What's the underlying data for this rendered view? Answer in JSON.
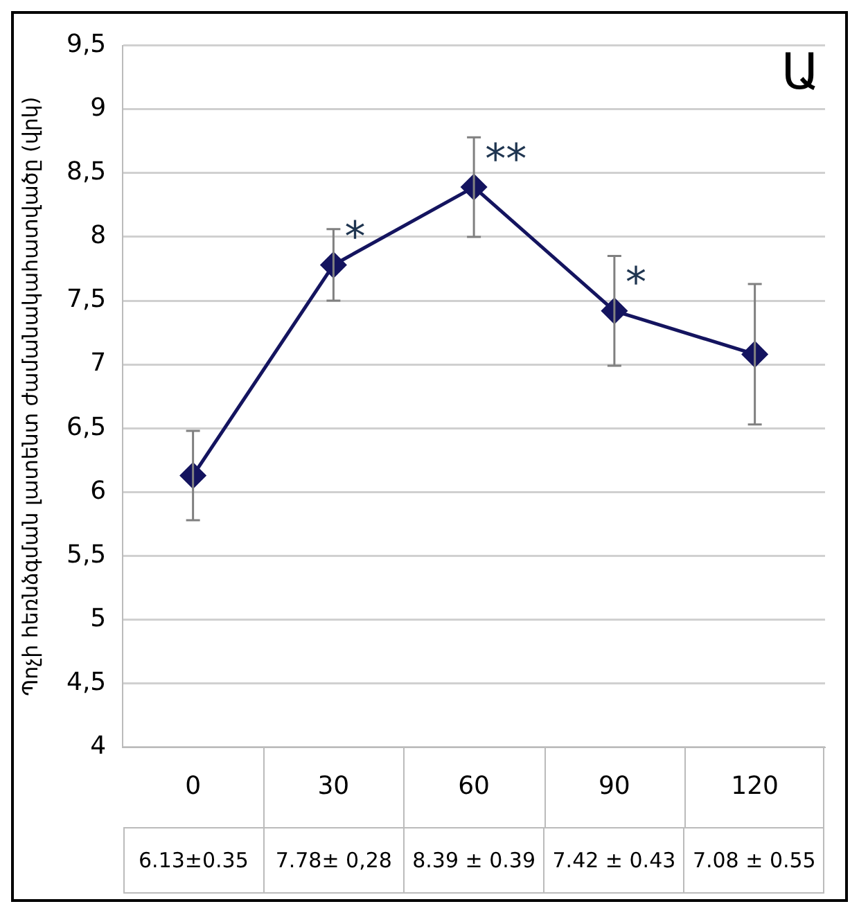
{
  "chart_data": {
    "type": "line",
    "ylabel": "Պոչի հեռնձգման լատենտ ժամանակահատվածը (վրկ)",
    "categories": [
      "0",
      "30",
      "60",
      "90",
      "120"
    ],
    "series": [
      {
        "color": "#14145f",
        "values": [
          6.13,
          7.78,
          8.39,
          7.42,
          7.08
        ],
        "errors": [
          0.35,
          0.28,
          0.39,
          0.43,
          0.55
        ],
        "value_labels": [
          "6.13±0.35",
          "7.78± 0,28",
          "8.39 ± 0.39",
          "7.42 ± 0.43",
          "7.08 ± 0.55"
        ]
      }
    ],
    "ylim": [
      4,
      9.5
    ],
    "yticks": [
      4,
      {
        "value": 4.5,
        "label": "4,5"
      },
      5,
      {
        "value": 5.5,
        "label": "5,5"
      },
      6,
      {
        "value": 6.5,
        "label": "6,5"
      },
      7,
      {
        "value": 7.5,
        "label": "7,5"
      },
      8,
      {
        "value": 8.5,
        "label": "8,5"
      },
      9,
      {
        "value": 9.5,
        "label": "9,5"
      }
    ],
    "grid": "y",
    "marker": "diamond",
    "line_style": "solid",
    "legend": false,
    "annotations": [
      {
        "text": "*",
        "x": "30",
        "y": 7.78
      },
      {
        "text": "**",
        "x": "60",
        "y": 8.39
      },
      {
        "text": "*",
        "x": "90",
        "y": 7.42
      },
      "Ա"
    ]
  }
}
